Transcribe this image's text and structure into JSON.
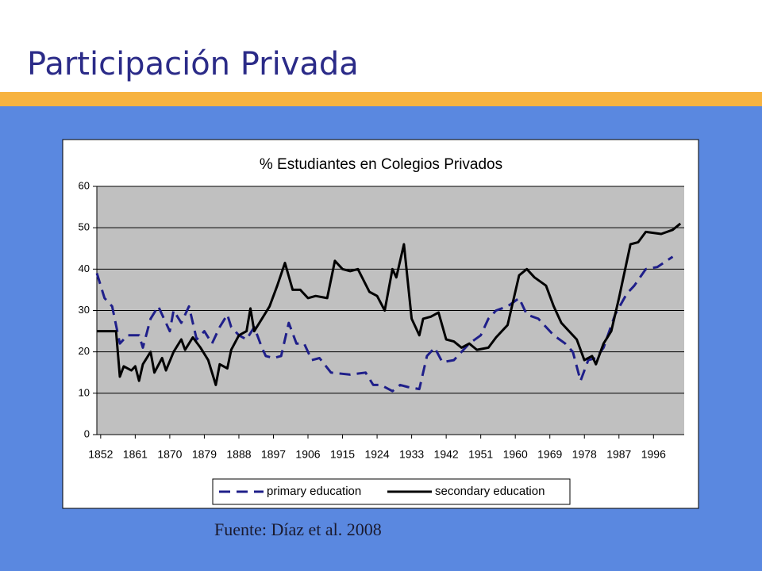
{
  "slide_title": "Participación Privada",
  "source": "Fuente: Díaz et al. 2008",
  "chart_data": {
    "type": "line",
    "title": "% Estudiantes en Colegios Privados",
    "xlim": [
      1851,
      2004
    ],
    "ylim": [
      0,
      60
    ],
    "xticks": [
      1852,
      1861,
      1870,
      1879,
      1888,
      1897,
      1906,
      1915,
      1924,
      1933,
      1942,
      1951,
      1960,
      1969,
      1978,
      1987,
      1996
    ],
    "yticks": [
      0,
      10,
      20,
      30,
      40,
      50,
      60
    ],
    "grid": true,
    "legend": "bottom",
    "series": [
      {
        "name": "primary education",
        "color": "#1f1f8a",
        "dash": true,
        "x": [
          1851,
          1853,
          1855,
          1857,
          1859,
          1862,
          1863,
          1865,
          1867,
          1870,
          1871,
          1873,
          1875,
          1877,
          1879,
          1881,
          1883,
          1885,
          1886,
          1888,
          1890,
          1892,
          1894,
          1895,
          1897,
          1899,
          1901,
          1903,
          1905,
          1907,
          1909,
          1912,
          1917,
          1921,
          1923,
          1925,
          1928,
          1930,
          1932,
          1935,
          1937,
          1939,
          1941,
          1944,
          1948,
          1951,
          1953,
          1955,
          1958,
          1961,
          1963,
          1966,
          1970,
          1973,
          1975,
          1977,
          1979,
          1981,
          1983,
          1986,
          1989,
          1991,
          1994,
          1997,
          2001
        ],
        "values": [
          39,
          33,
          31,
          22,
          24,
          24,
          21,
          28,
          31,
          25,
          30,
          27,
          31,
          23,
          25,
          22,
          26,
          29,
          26,
          24,
          23,
          26,
          21,
          19,
          18.5,
          19,
          27,
          22,
          22,
          18,
          18.5,
          15,
          14.5,
          15,
          12,
          12,
          10.5,
          12,
          11.5,
          11,
          19,
          21,
          17.5,
          18,
          22,
          24,
          28,
          30,
          31,
          33,
          29,
          28,
          24,
          22,
          20,
          13,
          18,
          18.5,
          21,
          29,
          34,
          36,
          40,
          40.5,
          43
        ]
      },
      {
        "name": "secondary education",
        "color": "#000000",
        "dash": false,
        "x": [
          1851,
          1856,
          1857,
          1858,
          1860,
          1861,
          1862,
          1863,
          1865,
          1866,
          1868,
          1869,
          1871,
          1873,
          1874,
          1876,
          1878,
          1880,
          1882,
          1883,
          1885,
          1886,
          1888,
          1890,
          1891,
          1892,
          1894,
          1896,
          1898,
          1900,
          1902,
          1904,
          1906,
          1908,
          1911,
          1913,
          1915,
          1917,
          1919,
          1922,
          1924,
          1926,
          1928,
          1929,
          1931,
          1933,
          1935,
          1936,
          1938,
          1940,
          1942,
          1944,
          1946,
          1948,
          1950,
          1953,
          1955,
          1958,
          1961,
          1963,
          1965,
          1968,
          1970,
          1972,
          1974,
          1976,
          1978,
          1980,
          1981,
          1983,
          1985,
          1987,
          1990,
          1992,
          1994,
          1998,
          2001,
          2003
        ],
        "values": [
          25,
          25,
          14,
          16.5,
          15.5,
          16.5,
          13,
          17,
          20,
          15,
          18.5,
          15.5,
          20,
          23,
          20.5,
          23.5,
          21,
          18,
          12,
          17,
          16,
          20.5,
          24,
          25,
          30.5,
          25,
          28,
          31,
          36,
          41.5,
          35,
          35,
          33,
          33.5,
          33,
          42,
          40,
          39.5,
          40,
          34.5,
          33.5,
          30,
          40,
          38,
          46,
          28,
          24,
          28,
          28.5,
          29.5,
          23,
          22.5,
          21,
          22,
          20.5,
          21,
          23.5,
          26.5,
          38.5,
          40,
          38,
          36,
          31,
          27,
          25,
          23,
          18,
          19,
          17,
          22,
          25,
          33,
          46,
          46.5,
          49,
          48.5,
          49.5,
          51
        ]
      }
    ]
  }
}
